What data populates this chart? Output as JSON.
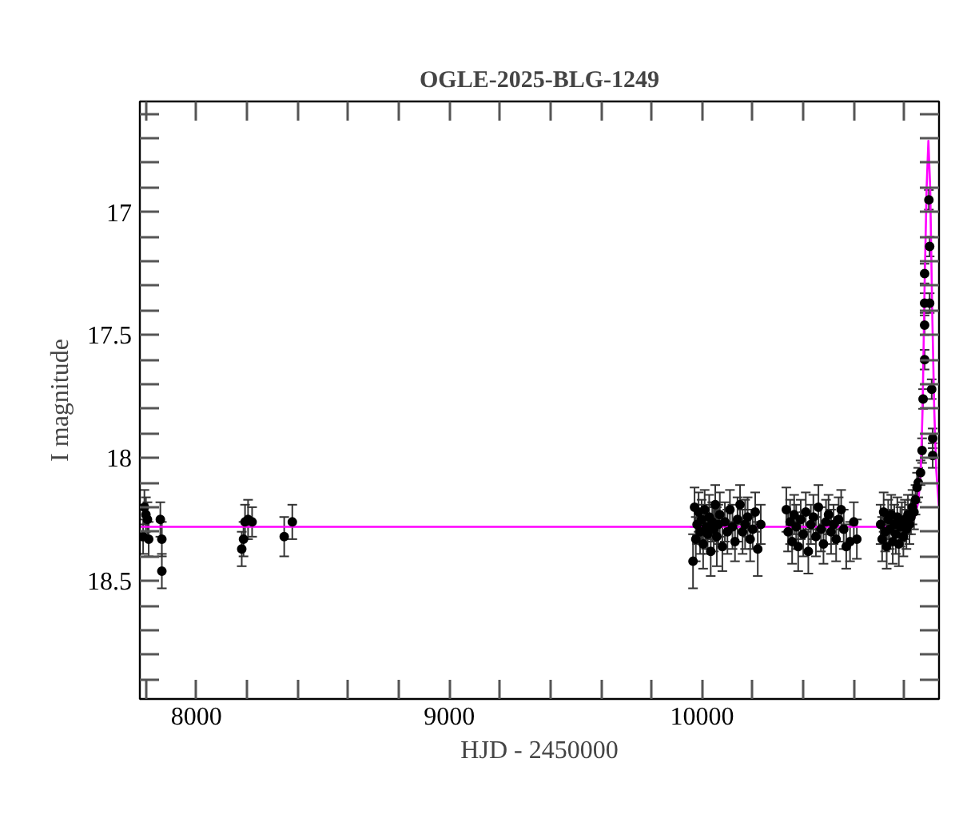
{
  "chart_data": {
    "type": "scatter",
    "title": "OGLE-2025-BLG-1249",
    "xlabel": "HJD - 2450000",
    "ylabel": "I magnitude",
    "xlim": [
      7776,
      10937
    ],
    "ylim": [
      18.98,
      16.55
    ],
    "xticks": [
      {
        "value": 7800,
        "label": null
      },
      8000,
      {
        "value": 8200,
        "label": null
      },
      {
        "value": 8400,
        "label": null
      },
      {
        "value": 8600,
        "label": null
      },
      {
        "value": 8800,
        "label": null
      },
      9000,
      {
        "value": 9200,
        "label": null
      },
      {
        "value": 9400,
        "label": null
      },
      {
        "value": 9600,
        "label": null
      },
      {
        "value": 9800,
        "label": null
      },
      10000,
      {
        "value": 10200,
        "label": null
      },
      {
        "value": 10400,
        "label": null
      },
      {
        "value": 10600,
        "label": null
      },
      {
        "value": 10800,
        "label": null
      }
    ],
    "yticks": [
      {
        "value": 16.6,
        "label": null
      },
      {
        "value": 16.7,
        "label": null
      },
      {
        "value": 16.8,
        "label": null
      },
      {
        "value": 16.9,
        "label": null
      },
      17,
      {
        "value": 17.1,
        "label": null
      },
      {
        "value": 17.2,
        "label": null
      },
      {
        "value": 17.3,
        "label": null
      },
      {
        "value": 17.4,
        "label": null
      },
      17.5,
      {
        "value": 17.6,
        "label": null
      },
      {
        "value": 17.7,
        "label": null
      },
      {
        "value": 17.8,
        "label": null
      },
      {
        "value": 17.9,
        "label": null
      },
      18,
      {
        "value": 18.1,
        "label": null
      },
      {
        "value": 18.2,
        "label": null
      },
      {
        "value": 18.3,
        "label": null
      },
      {
        "value": 18.4,
        "label": null
      },
      18.5,
      {
        "value": 18.6,
        "label": null
      },
      {
        "value": 18.7,
        "label": null
      },
      {
        "value": 18.8,
        "label": null
      },
      {
        "value": 18.9,
        "label": null
      }
    ],
    "grid": false,
    "series": [
      {
        "color": "#000000",
        "marker": "circle",
        "x": [
          7794,
          7789,
          7800,
          7806,
          7811,
          7857,
          7863,
          7863,
          8179,
          8186,
          8192,
          8204,
          8220,
          8347,
          8379,
          9964,
          9970,
          9975,
          9980,
          9986,
          9992,
          9998,
          10004,
          10010,
          10016,
          10022,
          10028,
          10034,
          10040,
          10046,
          10052,
          10058,
          10064,
          10070,
          10080,
          10090,
          10100,
          10110,
          10120,
          10130,
          10140,
          10150,
          10160,
          10170,
          10180,
          10190,
          10200,
          10210,
          10220,
          10232,
          10333,
          10340,
          10348,
          10356,
          10364,
          10372,
          10380,
          10390,
          10400,
          10410,
          10420,
          10430,
          10440,
          10450,
          10460,
          10470,
          10480,
          10490,
          10500,
          10510,
          10520,
          10530,
          10540,
          10550,
          10560,
          10570,
          10585,
          10600,
          10612,
          10706,
          10712,
          10718,
          10724,
          10730,
          10736,
          10742,
          10748,
          10754,
          10760,
          10766,
          10772,
          10778,
          10784,
          10790,
          10796,
          10802,
          10808,
          10814,
          10820,
          10826,
          10832,
          10838,
          10844,
          10850,
          10855,
          10864,
          10870,
          10874,
          10880,
          10880,
          10880,
          10880,
          10897,
          10900,
          10900,
          10908,
          10912,
          10912
        ],
        "values": [
          18.2,
          18.32,
          18.23,
          18.25,
          18.33,
          18.25,
          18.33,
          18.46,
          18.37,
          18.33,
          18.26,
          18.25,
          18.26,
          18.32,
          18.26,
          18.42,
          18.2,
          18.33,
          18.27,
          18.22,
          18.3,
          18.25,
          18.35,
          18.21,
          18.28,
          18.31,
          18.24,
          18.38,
          18.26,
          18.29,
          18.19,
          18.32,
          18.27,
          18.23,
          18.36,
          18.26,
          18.3,
          18.21,
          18.28,
          18.34,
          18.25,
          18.19,
          18.3,
          18.27,
          18.24,
          18.33,
          18.29,
          18.22,
          18.37,
          18.27,
          18.21,
          18.3,
          18.26,
          18.34,
          18.23,
          18.28,
          18.36,
          18.25,
          18.31,
          18.22,
          18.38,
          18.27,
          18.24,
          18.32,
          18.2,
          18.29,
          18.35,
          18.26,
          18.23,
          18.3,
          18.27,
          18.33,
          18.25,
          18.21,
          18.29,
          18.36,
          18.34,
          18.26,
          18.33,
          18.27,
          18.33,
          18.22,
          18.3,
          18.36,
          18.25,
          18.29,
          18.23,
          18.34,
          18.27,
          18.31,
          18.24,
          18.35,
          18.28,
          18.26,
          18.32,
          18.25,
          18.29,
          18.23,
          18.27,
          18.24,
          18.2,
          18.22,
          18.17,
          18.12,
          18.1,
          18.06,
          17.97,
          17.76,
          17.6,
          17.46,
          17.25,
          17.37,
          16.95,
          17.14,
          17.37,
          17.72,
          17.92,
          17.99
        ],
        "errors": [
          0.07,
          0.07,
          0.07,
          0.07,
          0.07,
          0.07,
          0.07,
          0.07,
          0.07,
          0.07,
          0.07,
          0.08,
          0.06,
          0.08,
          0.07,
          0.11,
          0.08,
          0.09,
          0.08,
          0.08,
          0.09,
          0.08,
          0.1,
          0.08,
          0.09,
          0.08,
          0.09,
          0.1,
          0.08,
          0.09,
          0.08,
          0.12,
          0.08,
          0.09,
          0.1,
          0.08,
          0.09,
          0.08,
          0.09,
          0.08,
          0.09,
          0.08,
          0.09,
          0.1,
          0.08,
          0.09,
          0.08,
          0.08,
          0.11,
          0.08,
          0.09,
          0.08,
          0.09,
          0.09,
          0.08,
          0.09,
          0.1,
          0.08,
          0.09,
          0.08,
          0.09,
          0.08,
          0.09,
          0.08,
          0.09,
          0.09,
          0.08,
          0.09,
          0.08,
          0.09,
          0.08,
          0.09,
          0.09,
          0.08,
          0.08,
          0.09,
          0.08,
          0.08,
          0.08,
          0.08,
          0.09,
          0.08,
          0.08,
          0.09,
          0.08,
          0.08,
          0.08,
          0.09,
          0.08,
          0.08,
          0.08,
          0.09,
          0.08,
          0.08,
          0.08,
          0.08,
          0.08,
          0.08,
          0.08,
          0.07,
          0.07,
          0.07,
          0.06,
          0.06,
          0.06,
          0.05,
          0.05,
          0.04,
          0.04,
          0.04,
          0.04,
          0.04,
          0.04,
          0.04,
          0.04,
          0.04,
          0.04,
          0.05
        ]
      },
      {
        "type": "line",
        "color": "#ff00ff",
        "x": [
          7776,
          10780,
          10820,
          10840,
          10855,
          10865,
          10872,
          10880,
          10888,
          10895,
          10902,
          10910,
          10918,
          10926,
          10937
        ],
        "values": [
          18.28,
          18.28,
          18.27,
          18.24,
          18.18,
          18.05,
          17.8,
          17.3,
          16.9,
          16.71,
          16.9,
          17.4,
          17.8,
          18.05,
          18.2
        ]
      }
    ]
  }
}
